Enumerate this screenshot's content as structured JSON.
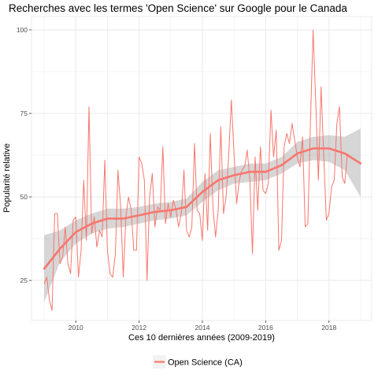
{
  "chart_data": {
    "type": "line",
    "title": "Recherches avec les termes 'Open Science' sur Google pour le Canada",
    "xlabel": "Ces 10 dernières années (2009-2019)",
    "ylabel": "Popularité relative",
    "xlim": [
      2008.6,
      2019.35
    ],
    "ylim": [
      13,
      104
    ],
    "x_ticks": [
      2010,
      2012,
      2014,
      2016,
      2018
    ],
    "y_ticks": [
      25,
      50,
      75,
      100
    ],
    "grid": true,
    "legend_position": "bottom",
    "series": [
      {
        "name": "Open Science (CA)",
        "color": "#F8766D",
        "x_start": 2009.0,
        "x_step": 0.08333,
        "values": [
          24,
          26,
          19,
          16,
          45,
          45,
          30,
          32,
          41,
          30,
          27,
          43,
          44,
          26,
          34,
          55,
          37,
          77,
          39,
          44,
          35,
          40,
          38,
          61,
          34,
          27,
          26,
          33,
          58,
          47,
          26,
          44,
          50,
          46,
          34,
          34,
          62,
          60,
          55,
          25,
          50,
          57,
          41,
          47,
          46,
          65,
          42,
          48,
          44,
          49,
          46,
          41,
          45,
          58,
          40,
          38,
          41,
          66,
          46,
          45,
          37,
          57,
          40,
          69,
          47,
          38,
          46,
          71,
          45,
          50,
          63,
          79,
          63,
          48,
          55,
          58,
          59,
          64,
          55,
          33,
          62,
          46,
          65,
          52,
          51,
          54,
          76,
          62,
          70,
          34,
          37,
          65,
          69,
          66,
          72,
          67,
          62,
          59,
          68,
          41,
          42,
          73,
          100,
          78,
          55,
          83,
          63,
          43,
          45,
          53,
          55,
          72,
          77,
          56,
          54,
          63
        ]
      }
    ],
    "smooth": {
      "x": [
        2009.0,
        2009.5,
        2010.0,
        2010.5,
        2011.0,
        2011.5,
        2012.0,
        2012.5,
        2013.0,
        2013.5,
        2014.0,
        2014.5,
        2015.0,
        2015.5,
        2016.0,
        2016.5,
        2017.0,
        2017.5,
        2018.0,
        2018.5,
        2019.0
      ],
      "y": [
        28.5,
        34.5,
        39.5,
        42.0,
        43.5,
        43.5,
        44.5,
        45.5,
        46.0,
        47.0,
        51.5,
        55.0,
        56.5,
        57.5,
        57.5,
        59.5,
        63.0,
        64.5,
        64.5,
        63.0,
        60.0
      ],
      "lower": [
        18.5,
        30.5,
        36.0,
        39.0,
        40.5,
        41.0,
        42.0,
        43.0,
        43.5,
        44.5,
        48.5,
        52.0,
        54.0,
        54.5,
        55.0,
        57.0,
        60.0,
        61.0,
        60.5,
        58.0,
        50.0
      ],
      "upper": [
        38.5,
        40.0,
        43.0,
        45.0,
        46.5,
        46.5,
        47.0,
        48.0,
        48.5,
        49.5,
        54.5,
        58.0,
        59.0,
        60.0,
        60.0,
        62.0,
        66.5,
        68.0,
        68.5,
        68.0,
        70.5
      ]
    },
    "colors": {
      "line": "#F8766D",
      "ribbon": "#999999",
      "grid": "#EBEBEB",
      "panel_border": "#333333"
    }
  }
}
